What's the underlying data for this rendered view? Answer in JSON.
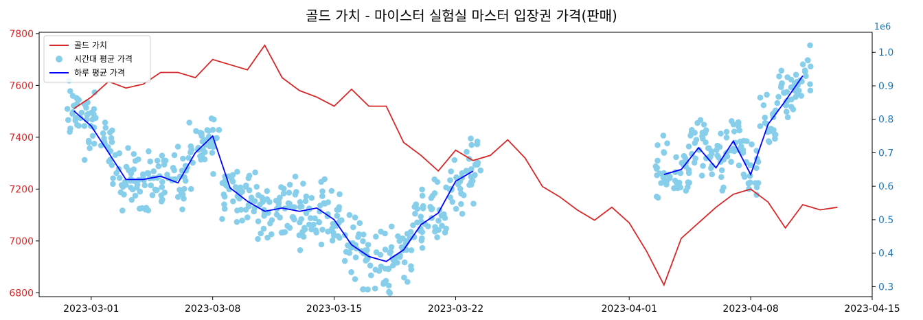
{
  "chart_data": {
    "type": "line",
    "title": "골드 가치  -  마이스터 실험실 마스터 입장권 가격(판매)",
    "xlabel": "",
    "ylabel_left": "",
    "ylabel_right": "",
    "right_axis_offset_text": "1e6",
    "x_ticks": [
      "2023-03-01",
      "2023-03-08",
      "2023-03-15",
      "2023-03-22",
      "2023-04-01",
      "2023-04-08",
      "2023-04-15"
    ],
    "xlim": [
      "2023-02-26",
      "2023-04-15"
    ],
    "left_ylim": [
      6785,
      7805
    ],
    "left_yticks": [
      6800,
      7000,
      7200,
      7400,
      7600,
      7800
    ],
    "right_ylim": [
      0.27,
      1.06
    ],
    "right_yticks": [
      0.3,
      0.4,
      0.5,
      0.6,
      0.7,
      0.8,
      0.9,
      1.0
    ],
    "right_ytick_labels": [
      "0.3",
      "0.4",
      "0.5",
      "0.6",
      "0.7",
      "0.8",
      "0.9",
      "1.0"
    ],
    "grid": false,
    "legend_position": "top-left",
    "colors": {
      "gold": "#d62728",
      "scatter": "#87ceeb",
      "daily": "#0000ff",
      "left_axis": "#d62728",
      "right_axis": "#1f77b4"
    },
    "series": [
      {
        "name": "골드 가치",
        "axis": "left",
        "kind": "line",
        "x": [
          "2023-02-28",
          "2023-03-01",
          "2023-03-02",
          "2023-03-03",
          "2023-03-04",
          "2023-03-05",
          "2023-03-06",
          "2023-03-07",
          "2023-03-08",
          "2023-03-09",
          "2023-03-10",
          "2023-03-11",
          "2023-03-12",
          "2023-03-13",
          "2023-03-14",
          "2023-03-15",
          "2023-03-16",
          "2023-03-17",
          "2023-03-18",
          "2023-03-19",
          "2023-03-20",
          "2023-03-21",
          "2023-03-22",
          "2023-03-23",
          "2023-03-24",
          "2023-03-25",
          "2023-03-26",
          "2023-03-27",
          "2023-03-28",
          "2023-03-29",
          "2023-03-30",
          "2023-03-31",
          "2023-04-01",
          "2023-04-02",
          "2023-04-03",
          "2023-04-04",
          "2023-04-05",
          "2023-04-06",
          "2023-04-07",
          "2023-04-08",
          "2023-04-09",
          "2023-04-10",
          "2023-04-11",
          "2023-04-12",
          "2023-04-13"
        ],
        "values": [
          7510,
          7555,
          7615,
          7590,
          7605,
          7650,
          7650,
          7630,
          7700,
          7680,
          7660,
          7755,
          7630,
          7580,
          7555,
          7520,
          7585,
          7520,
          7520,
          7380,
          7330,
          7270,
          7350,
          7310,
          7330,
          7390,
          7320,
          7210,
          7170,
          7120,
          7080,
          7130,
          7070,
          6960,
          6830,
          7010,
          7070,
          7130,
          7180,
          7200,
          7150,
          7050,
          7140,
          7120,
          7130
        ]
      },
      {
        "name": "시간대 평균 가격",
        "axis": "right",
        "kind": "scatter",
        "points": []
      },
      {
        "name": "하루 평균 가격",
        "axis": "right",
        "kind": "line",
        "x": [
          "2023-02-28",
          "2023-03-01",
          "2023-03-02",
          "2023-03-03",
          "2023-03-04",
          "2023-03-05",
          "2023-03-06",
          "2023-03-07",
          "2023-03-08",
          "2023-03-09",
          "2023-03-10",
          "2023-03-11",
          "2023-03-12",
          "2023-03-13",
          "2023-03-14",
          "2023-03-15",
          "2023-03-16",
          "2023-03-17",
          "2023-03-18",
          "2023-03-19",
          "2023-03-20",
          "2023-03-21",
          "2023-03-22",
          "2023-03-23",
          "2023-04-03",
          "2023-04-04",
          "2023-04-05",
          "2023-04-06",
          "2023-04-07",
          "2023-04-08",
          "2023-04-09",
          "2023-04-10",
          "2023-04-11"
        ],
        "values": [
          0.825,
          0.78,
          0.7,
          0.62,
          0.62,
          0.63,
          0.61,
          0.7,
          0.75,
          0.595,
          0.555,
          0.525,
          0.535,
          0.525,
          0.535,
          0.5,
          0.425,
          0.39,
          0.375,
          0.41,
          0.485,
          0.52,
          0.615,
          0.645,
          0.635,
          0.65,
          0.715,
          0.655,
          0.735,
          0.635,
          0.785,
          0.855,
          0.93
        ]
      }
    ]
  }
}
